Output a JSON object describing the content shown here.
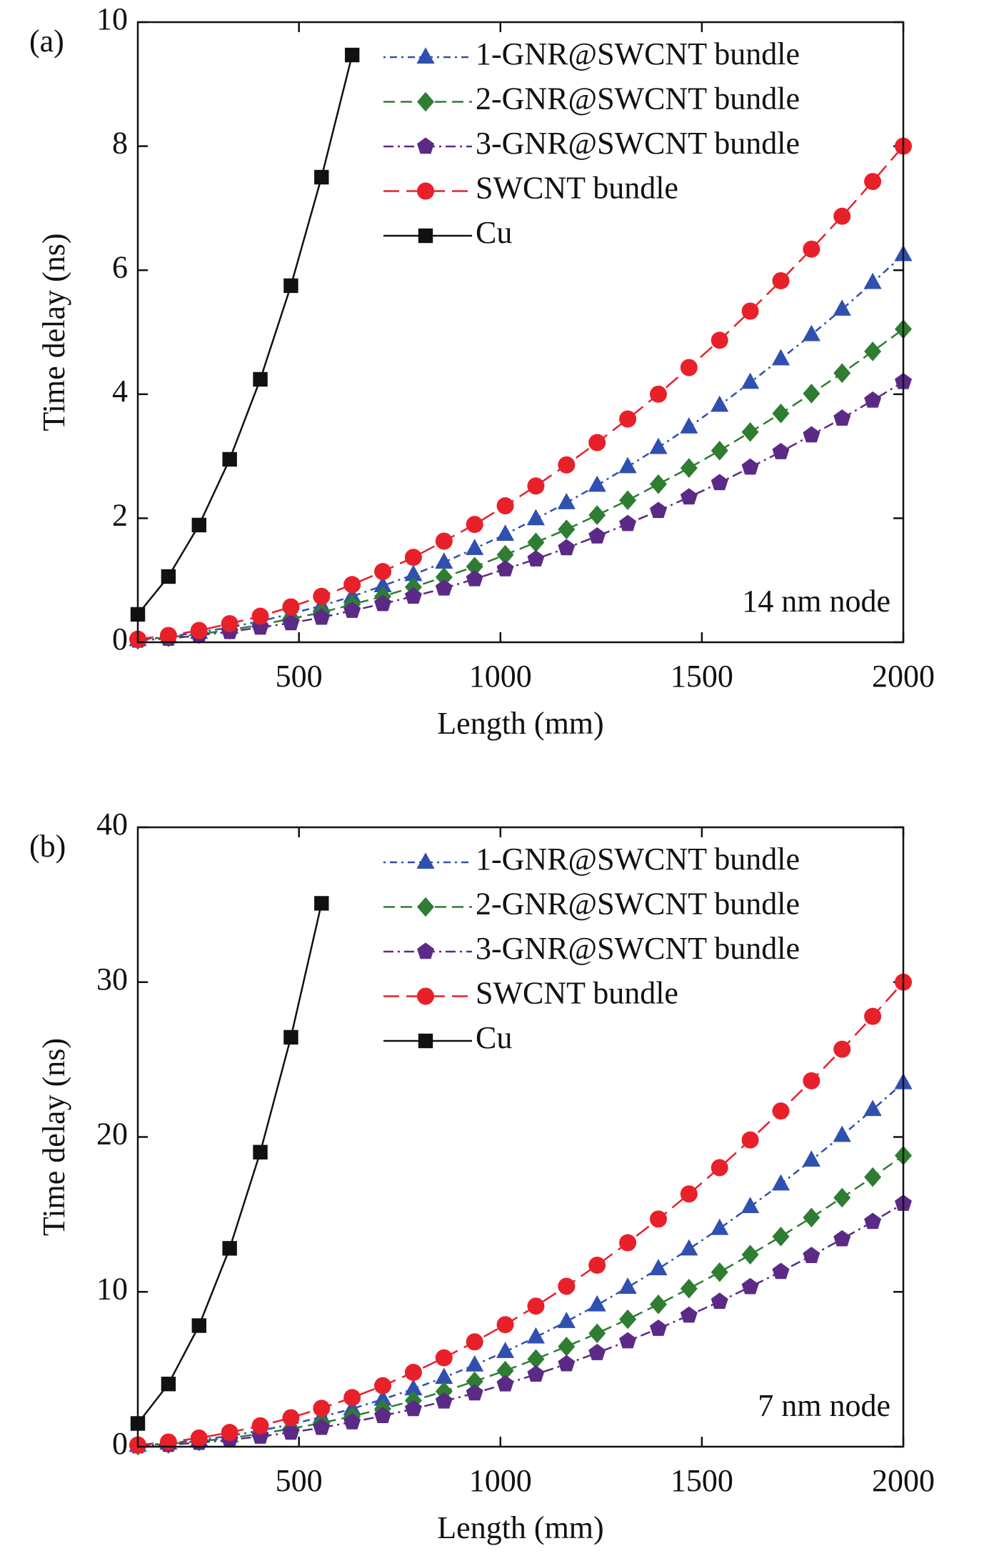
{
  "chart_data": [
    {
      "type": "line",
      "panel_label": "(a)",
      "annotation": "14 nm node",
      "x_label": "Length (mm)",
      "y_label": "Time delay (ns)",
      "xlim": [
        100,
        2000
      ],
      "xticks": [
        500,
        1000,
        1500,
        2000
      ],
      "ylim": [
        0,
        10
      ],
      "yticks": [
        0,
        2,
        4,
        6,
        8,
        10
      ],
      "legend": "upper right",
      "x": [
        100,
        176,
        252,
        328,
        404,
        480,
        556,
        632,
        708,
        784,
        860,
        936,
        1012,
        1088,
        1164,
        1240,
        1316,
        1392,
        1468,
        1544,
        1620,
        1696,
        1772,
        1848,
        1924,
        2000
      ],
      "series": [
        {
          "name": "1-GNR@SWCNT bundle",
          "color": "#3050b0",
          "marker": "triangle",
          "dash": "3 6 10 6",
          "values": [
            0.04,
            0.09,
            0.16,
            0.24,
            0.34,
            0.46,
            0.59,
            0.74,
            0.91,
            1.09,
            1.29,
            1.51,
            1.74,
            1.99,
            2.25,
            2.53,
            2.83,
            3.14,
            3.47,
            3.82,
            4.19,
            4.57,
            4.96,
            5.37,
            5.8,
            6.25
          ]
        },
        {
          "name": "2-GNR@SWCNT bundle",
          "color": "#2e7d32",
          "marker": "diamond",
          "dash": "16 8",
          "values": [
            0.04,
            0.08,
            0.13,
            0.2,
            0.28,
            0.38,
            0.48,
            0.61,
            0.74,
            0.89,
            1.05,
            1.22,
            1.41,
            1.61,
            1.82,
            2.05,
            2.29,
            2.55,
            2.81,
            3.09,
            3.39,
            3.69,
            4.01,
            4.34,
            4.69,
            5.05
          ]
        },
        {
          "name": "3-GNR@SWCNT bundle",
          "color": "#5b2a86",
          "marker": "pentagon",
          "dash": "14 6 3 6",
          "values": [
            0.03,
            0.06,
            0.11,
            0.17,
            0.24,
            0.31,
            0.4,
            0.51,
            0.62,
            0.74,
            0.87,
            1.02,
            1.18,
            1.34,
            1.52,
            1.71,
            1.91,
            2.12,
            2.34,
            2.57,
            2.82,
            3.07,
            3.34,
            3.61,
            3.9,
            4.2
          ]
        },
        {
          "name": "SWCNT bundle",
          "color": "#e8202a",
          "marker": "circle",
          "dash": "22 10",
          "values": [
            0.05,
            0.11,
            0.19,
            0.3,
            0.42,
            0.57,
            0.74,
            0.93,
            1.14,
            1.37,
            1.63,
            1.9,
            2.2,
            2.52,
            2.86,
            3.22,
            3.6,
            4.0,
            4.43,
            4.87,
            5.34,
            5.83,
            6.34,
            6.87,
            7.43,
            8.0
          ]
        },
        {
          "name": "Cu",
          "color": "#111111",
          "marker": "square",
          "dash": "none",
          "values": [
            0.45,
            1.06,
            1.89,
            2.95,
            4.24,
            5.75,
            7.5,
            9.47,
            null,
            null,
            null,
            null,
            null,
            null,
            null,
            null,
            null,
            null,
            null,
            null,
            null,
            null,
            null,
            null,
            null,
            null
          ]
        }
      ]
    },
    {
      "type": "line",
      "panel_label": "(b)",
      "annotation": "7 nm node",
      "x_label": "Length (mm)",
      "y_label": "Time delay (ns)",
      "xlim": [
        100,
        2000
      ],
      "xticks": [
        500,
        1000,
        1500,
        2000
      ],
      "ylim": [
        0,
        40
      ],
      "yticks": [
        0,
        10,
        20,
        30,
        40
      ],
      "legend": "upper right",
      "x": [
        100,
        176,
        252,
        328,
        404,
        480,
        556,
        632,
        708,
        784,
        860,
        936,
        1012,
        1088,
        1164,
        1240,
        1316,
        1392,
        1468,
        1544,
        1620,
        1696,
        1772,
        1848,
        1924,
        2000
      ],
      "series": [
        {
          "name": "1-GNR@SWCNT bundle",
          "color": "#3050b0",
          "marker": "triangle",
          "dash": "3 6 10 6",
          "values": [
            0.08,
            0.22,
            0.43,
            0.7,
            1.04,
            1.44,
            1.92,
            2.45,
            3.06,
            3.73,
            4.47,
            5.27,
            6.14,
            7.08,
            8.08,
            9.15,
            10.29,
            11.49,
            12.76,
            14.09,
            15.5,
            16.96,
            18.5,
            20.1,
            21.77,
            23.5
          ]
        },
        {
          "name": "2-GNR@SWCNT bundle",
          "color": "#2e7d32",
          "marker": "diamond",
          "dash": "16 8",
          "values": [
            0.07,
            0.18,
            0.34,
            0.56,
            0.83,
            1.16,
            1.53,
            1.96,
            2.45,
            2.98,
            3.57,
            4.22,
            4.91,
            5.66,
            6.47,
            7.32,
            8.23,
            9.19,
            10.21,
            11.27,
            12.4,
            13.57,
            14.8,
            16.08,
            17.41,
            18.8
          ]
        },
        {
          "name": "3-GNR@SWCNT bundle",
          "color": "#5b2a86",
          "marker": "pentagon",
          "dash": "14 6 3 6",
          "values": [
            0.04,
            0.13,
            0.26,
            0.44,
            0.66,
            0.92,
            1.23,
            1.59,
            1.99,
            2.44,
            2.93,
            3.46,
            4.04,
            4.67,
            5.34,
            6.06,
            6.82,
            7.63,
            8.48,
            9.37,
            10.32,
            11.3,
            12.33,
            13.41,
            14.53,
            15.7
          ]
        },
        {
          "name": "SWCNT bundle",
          "color": "#e8202a",
          "marker": "circle",
          "dash": "22 10",
          "values": [
            0.11,
            0.3,
            0.56,
            0.92,
            1.35,
            1.87,
            2.48,
            3.17,
            3.94,
            4.8,
            5.74,
            6.77,
            7.88,
            9.08,
            10.36,
            11.72,
            13.17,
            14.7,
            16.32,
            18.02,
            19.81,
            21.68,
            23.63,
            25.67,
            27.79,
            30.0
          ]
        },
        {
          "name": "Cu",
          "color": "#111111",
          "marker": "square",
          "dash": "none",
          "values": [
            1.5,
            4.05,
            7.82,
            12.81,
            19.02,
            26.44,
            35.09,
            null,
            null,
            null,
            null,
            null,
            null,
            null,
            null,
            null,
            null,
            null,
            null,
            null,
            null,
            null,
            null,
            null,
            null,
            null
          ]
        }
      ]
    }
  ]
}
